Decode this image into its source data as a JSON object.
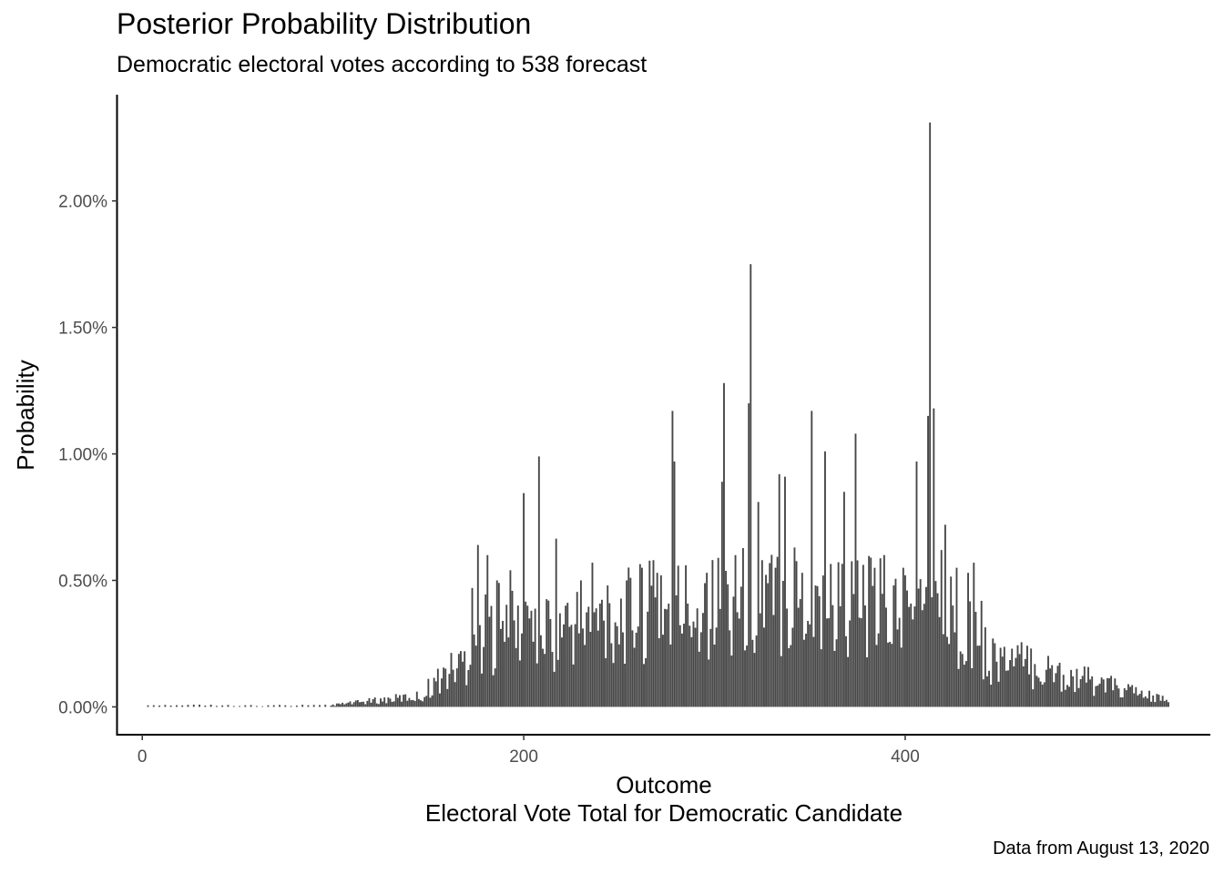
{
  "chart_data": {
    "type": "bar",
    "title": "Posterior Probability Distribution",
    "subtitle": "Democratic electoral votes according to 538 forecast",
    "xlabel": "Outcome",
    "xlabel_line2": "Electoral Vote Total for Democratic Candidate",
    "ylabel": "Probability",
    "caption": "Data from August 13, 2020",
    "xlim": [
      -13,
      560
    ],
    "ylim": [
      -0.0011,
      0.0242
    ],
    "x_ticks": [
      0,
      200,
      400
    ],
    "y_ticks": [
      0.0,
      0.005,
      0.01,
      0.015,
      0.02
    ],
    "y_tick_labels": [
      "0.00%",
      "0.50%",
      "1.00%",
      "1.50%",
      "2.00%"
    ],
    "bar_color": "#474747",
    "grid": false,
    "x": [],
    "values": []
  }
}
